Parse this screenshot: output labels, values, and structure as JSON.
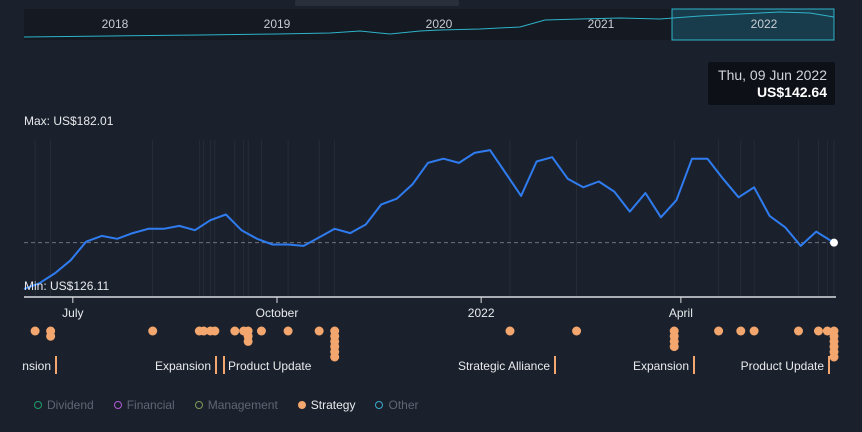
{
  "chart_data": {
    "type": "line",
    "currency": "US$",
    "max_label": "Max: US$182.01",
    "min_label": "Min: US$126.11",
    "navigator_years": [
      "2018",
      "2019",
      "2020",
      "2021",
      "2022"
    ],
    "navigator_selected": "2022",
    "x_tick_labels": [
      "July",
      "October",
      "2022",
      "April"
    ],
    "ylim": [
      126.11,
      182.01
    ],
    "reference_line": 142.64,
    "x": [
      "2021-06-09",
      "2021-06-16",
      "2021-06-23",
      "2021-06-30",
      "2021-07-07",
      "2021-07-14",
      "2021-07-21",
      "2021-07-28",
      "2021-08-04",
      "2021-08-11",
      "2021-08-18",
      "2021-08-25",
      "2021-09-01",
      "2021-09-08",
      "2021-09-15",
      "2021-09-22",
      "2021-09-29",
      "2021-10-06",
      "2021-10-13",
      "2021-10-20",
      "2021-10-27",
      "2021-11-03",
      "2021-11-10",
      "2021-11-17",
      "2021-11-24",
      "2021-12-01",
      "2021-12-08",
      "2021-12-15",
      "2021-12-22",
      "2021-12-29",
      "2022-01-05",
      "2022-01-12",
      "2022-01-19",
      "2022-01-26",
      "2022-02-02",
      "2022-02-09",
      "2022-02-16",
      "2022-02-23",
      "2022-03-02",
      "2022-03-09",
      "2022-03-16",
      "2022-03-23",
      "2022-03-30",
      "2022-04-06",
      "2022-04-13",
      "2022-04-20",
      "2022-04-27",
      "2022-05-04",
      "2022-05-11",
      "2022-05-18",
      "2022-05-25",
      "2022-06-01",
      "2022-06-09"
    ],
    "values": [
      126.5,
      128.5,
      132.0,
      136.5,
      143.0,
      145.0,
      144.0,
      146.0,
      147.5,
      147.5,
      148.5,
      147.0,
      150.5,
      152.5,
      147.0,
      144.0,
      142.0,
      142.0,
      141.5,
      144.5,
      147.5,
      146.0,
      149.0,
      156.0,
      158.0,
      163.0,
      170.5,
      172.0,
      170.5,
      174.0,
      175.0,
      167.0,
      159.0,
      171.0,
      172.5,
      165.0,
      162.0,
      164.0,
      160.5,
      153.5,
      160.0,
      151.5,
      157.5,
      172.0,
      172.0,
      165.0,
      158.5,
      162.0,
      152.0,
      148.0,
      141.5,
      146.5,
      142.64
    ],
    "annotations": [
      {
        "label": "Expansion",
        "category": "Strategy"
      },
      {
        "label": "Expansion",
        "category": "Strategy"
      },
      {
        "label": "Product Update",
        "category": "Strategy"
      },
      {
        "label": "Strategic Alliance",
        "category": "Strategy"
      },
      {
        "label": "Expansion",
        "category": "Strategy"
      },
      {
        "label": "Product Update",
        "category": "Strategy"
      }
    ],
    "event_dates": [
      "2021-06-14",
      "2021-06-21",
      "2021-06-21",
      "2021-08-06",
      "2021-08-27",
      "2021-08-29",
      "2021-09-01",
      "2021-09-03",
      "2021-09-12",
      "2021-09-16",
      "2021-09-18",
      "2021-09-18",
      "2021-09-18",
      "2021-09-24",
      "2021-10-06",
      "2021-10-20",
      "2021-10-27",
      "2021-10-27",
      "2021-10-27",
      "2021-10-27",
      "2021-10-27",
      "2021-10-27",
      "2022-01-14",
      "2022-02-13",
      "2022-03-29",
      "2022-03-29",
      "2022-03-29",
      "2022-03-29",
      "2022-04-18",
      "2022-04-28",
      "2022-05-04",
      "2022-05-24",
      "2022-06-02",
      "2022-06-06",
      "2022-06-09",
      "2022-06-09",
      "2022-06-09",
      "2022-06-09",
      "2022-06-09",
      "2022-06-09"
    ],
    "legend": [
      {
        "label": "Dividend",
        "color": "#1d9e6b",
        "active": false
      },
      {
        "label": "Financial",
        "color": "#b15bd6",
        "active": false
      },
      {
        "label": "Management",
        "color": "#7f9a5b",
        "active": false
      },
      {
        "label": "Strategy",
        "color": "#f3a66d",
        "active": true
      },
      {
        "label": "Other",
        "color": "#3ba7c9",
        "active": false
      }
    ],
    "line_color": "#2f7cf0",
    "event_color": "#f3a66d"
  },
  "tooltip": {
    "date": "Thu, 09 Jun 2022",
    "price": "US$142.64"
  }
}
